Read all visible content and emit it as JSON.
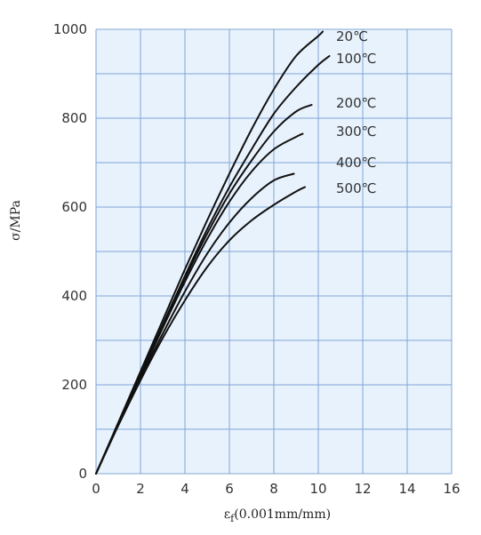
{
  "chart_data": {
    "type": "line",
    "xlabel_main": "ε",
    "xlabel_sub": "f",
    "xlabel_rest": "(0.001mm/mm)",
    "ylabel": "σ/MPa",
    "xlim": [
      0,
      16
    ],
    "ylim": [
      0,
      1000
    ],
    "xticks": [
      0,
      2,
      4,
      6,
      8,
      10,
      12,
      14,
      16
    ],
    "yticks": [
      0,
      200,
      400,
      600,
      800,
      1000
    ],
    "xtick_labels": [
      "0",
      "2",
      "4",
      "6",
      "8",
      "10",
      "12",
      "14",
      "16"
    ],
    "ytick_labels": [
      "0",
      "200",
      "400",
      "600",
      "800",
      "1000"
    ],
    "grid": true,
    "colors": {
      "plot_bg": "#e8f2fc",
      "grid": "#7fa6d6",
      "line": "#111111",
      "text": "#333333"
    },
    "series": [
      {
        "name": "20℃",
        "x": [
          0,
          1,
          2,
          3,
          4,
          5,
          6,
          7,
          8,
          9,
          10,
          10.2
        ],
        "y": [
          0,
          115,
          230,
          345,
          460,
          570,
          675,
          775,
          865,
          940,
          985,
          995
        ]
      },
      {
        "name": "100℃",
        "x": [
          0,
          1,
          2,
          3,
          4,
          5,
          6,
          7,
          8,
          9,
          10,
          10.5
        ],
        "y": [
          0,
          112,
          225,
          335,
          445,
          550,
          645,
          730,
          810,
          870,
          920,
          940
        ]
      },
      {
        "name": "200℃",
        "x": [
          0,
          1,
          2,
          3,
          4,
          5,
          6,
          7,
          8,
          9,
          9.7
        ],
        "y": [
          0,
          112,
          222,
          332,
          440,
          540,
          630,
          705,
          770,
          815,
          830
        ]
      },
      {
        "name": "300℃",
        "x": [
          0,
          1,
          2,
          3,
          4,
          5,
          6,
          7,
          8,
          9,
          9.3
        ],
        "y": [
          0,
          112,
          220,
          328,
          432,
          528,
          612,
          680,
          730,
          758,
          765
        ]
      },
      {
        "name": "400℃",
        "x": [
          0,
          1,
          2,
          3,
          4,
          5,
          6,
          7,
          8,
          8.9
        ],
        "y": [
          0,
          110,
          215,
          315,
          410,
          495,
          565,
          620,
          660,
          675
        ]
      },
      {
        "name": "500℃",
        "x": [
          0,
          1,
          2,
          3,
          4,
          5,
          6,
          7,
          8,
          9,
          9.4
        ],
        "y": [
          0,
          108,
          210,
          305,
          390,
          465,
          525,
          570,
          605,
          635,
          645
        ]
      }
    ]
  }
}
